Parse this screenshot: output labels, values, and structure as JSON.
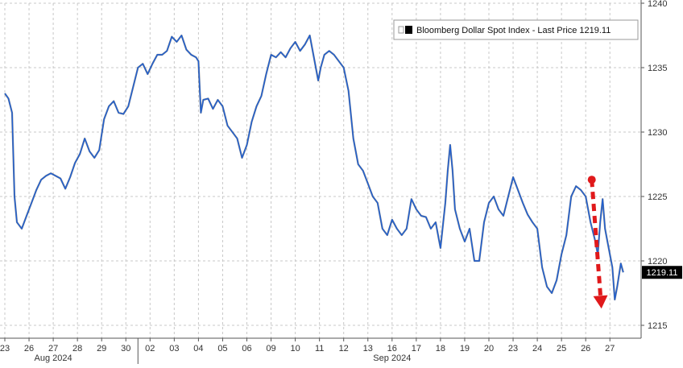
{
  "chart_data": {
    "type": "line",
    "title": "",
    "xlabel": "",
    "ylabel": "",
    "legend": {
      "label": "Bloomberg Dollar Spot Index - Last Price 1219.11",
      "placement": "top-right"
    },
    "last_price_tag": "1219.11",
    "ylim": [
      1214,
      1240
    ],
    "y_ticks": [
      1215,
      1220,
      1225,
      1230,
      1235,
      1240
    ],
    "y_axis_side": "right",
    "grid": true,
    "x_tick_labels": [
      "23",
      "26",
      "27",
      "28",
      "29",
      "30",
      "02",
      "03",
      "04",
      "05",
      "06",
      "09",
      "10",
      "11",
      "12",
      "13",
      "16",
      "17",
      "18",
      "19",
      "20",
      "23",
      "24",
      "25",
      "26",
      "27"
    ],
    "month_labels": [
      {
        "text": "Aug 2024",
        "at_session": 2
      },
      {
        "text": "Sep 2024",
        "at_session": 16
      }
    ],
    "month_separator_session": 5.5,
    "series": [
      {
        "points": [
          [
            0.0,
            1233.0
          ],
          [
            0.15,
            1232.6
          ],
          [
            0.3,
            1231.5
          ],
          [
            0.4,
            1225.0
          ],
          [
            0.5,
            1223.0
          ],
          [
            0.7,
            1222.5
          ],
          [
            0.9,
            1223.5
          ],
          [
            1.1,
            1224.5
          ],
          [
            1.3,
            1225.5
          ],
          [
            1.5,
            1226.3
          ],
          [
            1.7,
            1226.6
          ],
          [
            1.9,
            1226.8
          ],
          [
            2.1,
            1226.6
          ],
          [
            2.3,
            1226.4
          ],
          [
            2.5,
            1225.6
          ],
          [
            2.7,
            1226.5
          ],
          [
            2.9,
            1227.6
          ],
          [
            3.1,
            1228.3
          ],
          [
            3.3,
            1229.5
          ],
          [
            3.5,
            1228.5
          ],
          [
            3.7,
            1228.0
          ],
          [
            3.9,
            1228.6
          ],
          [
            4.1,
            1231.0
          ],
          [
            4.3,
            1232.0
          ],
          [
            4.5,
            1232.4
          ],
          [
            4.7,
            1231.5
          ],
          [
            4.9,
            1231.4
          ],
          [
            5.1,
            1232.0
          ],
          [
            5.3,
            1233.5
          ],
          [
            5.5,
            1235.0
          ],
          [
            5.7,
            1235.3
          ],
          [
            5.9,
            1234.5
          ],
          [
            6.1,
            1235.3
          ],
          [
            6.3,
            1236.0
          ],
          [
            6.5,
            1236.0
          ],
          [
            6.7,
            1236.3
          ],
          [
            6.9,
            1237.4
          ],
          [
            7.1,
            1237.0
          ],
          [
            7.3,
            1237.5
          ],
          [
            7.5,
            1236.4
          ],
          [
            7.7,
            1236.0
          ],
          [
            7.9,
            1235.8
          ],
          [
            8.0,
            1235.5
          ],
          [
            8.1,
            1231.5
          ],
          [
            8.2,
            1232.5
          ],
          [
            8.4,
            1232.6
          ],
          [
            8.6,
            1231.8
          ],
          [
            8.8,
            1232.5
          ],
          [
            9.0,
            1232.0
          ],
          [
            9.2,
            1230.5
          ],
          [
            9.4,
            1230.0
          ],
          [
            9.6,
            1229.5
          ],
          [
            9.8,
            1228.0
          ],
          [
            10.0,
            1229.0
          ],
          [
            10.2,
            1230.8
          ],
          [
            10.4,
            1232.0
          ],
          [
            10.6,
            1232.8
          ],
          [
            10.8,
            1234.5
          ],
          [
            11.0,
            1236.0
          ],
          [
            11.2,
            1235.8
          ],
          [
            11.4,
            1236.2
          ],
          [
            11.6,
            1235.8
          ],
          [
            11.8,
            1236.5
          ],
          [
            12.0,
            1237.0
          ],
          [
            12.2,
            1236.3
          ],
          [
            12.4,
            1236.8
          ],
          [
            12.6,
            1237.5
          ],
          [
            12.8,
            1235.5
          ],
          [
            12.95,
            1234.0
          ],
          [
            13.05,
            1235.0
          ],
          [
            13.2,
            1236.0
          ],
          [
            13.4,
            1236.3
          ],
          [
            13.6,
            1236.0
          ],
          [
            13.8,
            1235.5
          ],
          [
            14.0,
            1235.0
          ],
          [
            14.2,
            1233.2
          ],
          [
            14.4,
            1229.5
          ],
          [
            14.6,
            1227.5
          ],
          [
            14.8,
            1227.0
          ],
          [
            15.0,
            1226.0
          ],
          [
            15.2,
            1225.0
          ],
          [
            15.4,
            1224.5
          ],
          [
            15.6,
            1222.5
          ],
          [
            15.8,
            1222.0
          ],
          [
            16.0,
            1223.2
          ],
          [
            16.2,
            1222.5
          ],
          [
            16.4,
            1222.0
          ],
          [
            16.6,
            1222.5
          ],
          [
            16.8,
            1224.8
          ],
          [
            17.0,
            1224.0
          ],
          [
            17.2,
            1223.5
          ],
          [
            17.4,
            1223.4
          ],
          [
            17.6,
            1222.5
          ],
          [
            17.8,
            1223.0
          ],
          [
            18.0,
            1221.0
          ],
          [
            18.2,
            1224.5
          ],
          [
            18.3,
            1227.0
          ],
          [
            18.4,
            1229.0
          ],
          [
            18.5,
            1227.0
          ],
          [
            18.6,
            1224.0
          ],
          [
            18.8,
            1222.5
          ],
          [
            19.0,
            1221.5
          ],
          [
            19.2,
            1222.5
          ],
          [
            19.4,
            1220.0
          ],
          [
            19.6,
            1220.0
          ],
          [
            19.8,
            1223.0
          ],
          [
            20.0,
            1224.5
          ],
          [
            20.2,
            1225.0
          ],
          [
            20.4,
            1224.0
          ],
          [
            20.6,
            1223.5
          ],
          [
            20.8,
            1225.0
          ],
          [
            21.0,
            1226.5
          ],
          [
            21.2,
            1225.5
          ],
          [
            21.4,
            1224.5
          ],
          [
            21.6,
            1223.6
          ],
          [
            21.8,
            1223.0
          ],
          [
            22.0,
            1222.5
          ],
          [
            22.2,
            1219.5
          ],
          [
            22.4,
            1218.0
          ],
          [
            22.6,
            1217.5
          ],
          [
            22.8,
            1218.5
          ],
          [
            23.0,
            1220.5
          ],
          [
            23.2,
            1222.0
          ],
          [
            23.4,
            1225.0
          ],
          [
            23.6,
            1225.8
          ],
          [
            23.8,
            1225.5
          ],
          [
            24.0,
            1225.0
          ],
          [
            24.2,
            1223.0
          ],
          [
            24.4,
            1221.5
          ],
          [
            24.5,
            1220.5
          ],
          [
            24.6,
            1223.0
          ],
          [
            24.7,
            1224.8
          ],
          [
            24.8,
            1222.5
          ],
          [
            24.9,
            1221.5
          ],
          [
            25.1,
            1219.5
          ],
          [
            25.2,
            1217.0
          ],
          [
            25.3,
            1218.0
          ],
          [
            25.45,
            1219.8
          ],
          [
            25.55,
            1219.11
          ]
        ]
      }
    ]
  },
  "annotation": {
    "arrow": {
      "from": [
        24.25,
        1226.3
      ],
      "to": [
        24.65,
        1216.3
      ]
    },
    "color": "#e0191b"
  },
  "colors": {
    "line_primary": "#1f5fd1",
    "line_dark": "#0f1a30",
    "grid": "#c8c8c8",
    "axis": "#555555",
    "tag_bg": "#000000",
    "tag_text": "#ffffff"
  }
}
